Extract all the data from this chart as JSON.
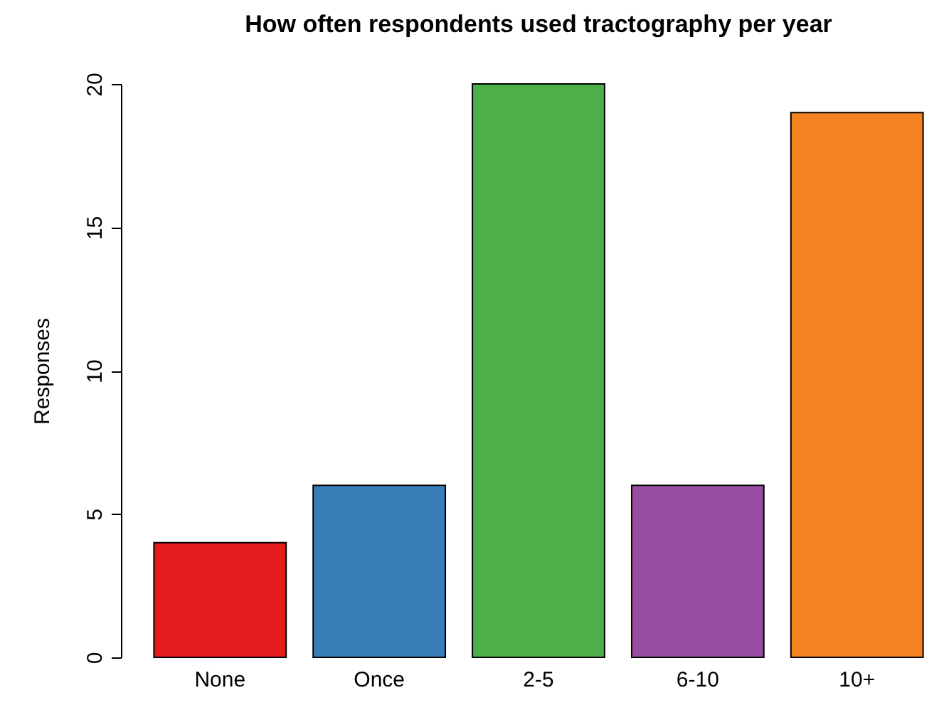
{
  "chart_data": {
    "type": "bar",
    "title": "How often respondents used tractography per year",
    "ylabel": "Responses",
    "categories": [
      "None",
      "Once",
      "2-5",
      "6-10",
      "10+"
    ],
    "values": [
      4,
      6,
      20,
      6,
      19
    ],
    "colors": [
      "#e41a1c",
      "#377eb8",
      "#4daf4a",
      "#984ea3",
      "#f58220"
    ],
    "ylim": [
      0,
      20
    ],
    "yticks": [
      0,
      5,
      10,
      15,
      20
    ],
    "grid": false
  }
}
